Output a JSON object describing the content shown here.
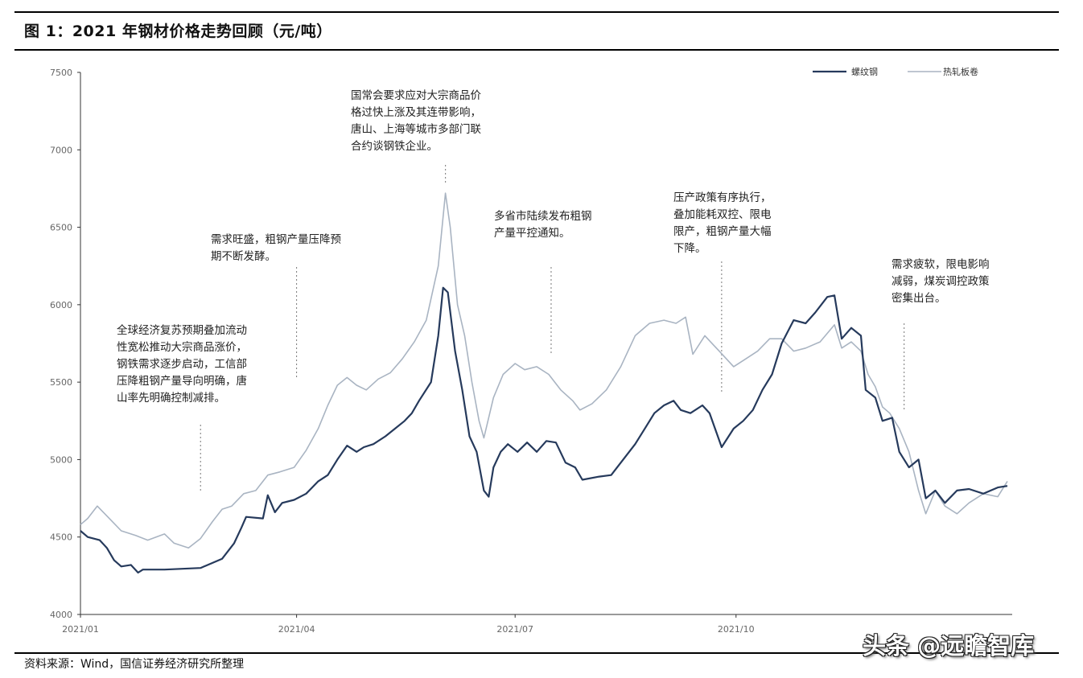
{
  "figure_title": "图 1：2021 年钢材价格走势回顾（元/吨）",
  "source_text": "资料来源：Wind，国信证券经济研究所整理",
  "watermark": "头条 @远瞻智库",
  "chart_data": {
    "type": "line",
    "title": "2021 年钢材价格走势回顾（元/吨）",
    "ylim": [
      4000,
      7500
    ],
    "y_ticks": [
      "4000",
      "4500",
      "5000",
      "5500",
      "6000",
      "6500",
      "7000",
      "7500"
    ],
    "x_ticks": [
      {
        "label": "2021/01",
        "date": "2021-01-01"
      },
      {
        "label": "2021/04",
        "date": "2021-04-01"
      },
      {
        "label": "2021/07",
        "date": "2021-07-01"
      },
      {
        "label": "2021/10",
        "date": "2021-10-01"
      }
    ],
    "grid": false,
    "legend_position": "top-right",
    "series": [
      {
        "name": "螺纹钢",
        "color": "#263a5c",
        "points": [
          [
            "2021-01-01",
            4540
          ],
          [
            "2021-01-04",
            4500
          ],
          [
            "2021-01-09",
            4480
          ],
          [
            "2021-01-12",
            4430
          ],
          [
            "2021-01-15",
            4350
          ],
          [
            "2021-01-18",
            4310
          ],
          [
            "2021-01-22",
            4320
          ],
          [
            "2021-01-25",
            4270
          ],
          [
            "2021-01-27",
            4290
          ],
          [
            "2021-02-05",
            4290
          ],
          [
            "2021-02-20",
            4300
          ],
          [
            "2021-03-01",
            4360
          ],
          [
            "2021-03-06",
            4460
          ],
          [
            "2021-03-09",
            4560
          ],
          [
            "2021-03-11",
            4630
          ],
          [
            "2021-03-18",
            4620
          ],
          [
            "2021-03-20",
            4770
          ],
          [
            "2021-03-23",
            4660
          ],
          [
            "2021-03-26",
            4720
          ],
          [
            "2021-03-31",
            4740
          ],
          [
            "2021-04-05",
            4780
          ],
          [
            "2021-04-10",
            4860
          ],
          [
            "2021-04-14",
            4900
          ],
          [
            "2021-04-18",
            5000
          ],
          [
            "2021-04-22",
            5090
          ],
          [
            "2021-04-26",
            5050
          ],
          [
            "2021-04-29",
            5080
          ],
          [
            "2021-05-03",
            5100
          ],
          [
            "2021-05-08",
            5150
          ],
          [
            "2021-05-12",
            5200
          ],
          [
            "2021-05-16",
            5250
          ],
          [
            "2021-05-19",
            5300
          ],
          [
            "2021-05-22",
            5380
          ],
          [
            "2021-05-27",
            5500
          ],
          [
            "2021-05-30",
            5800
          ],
          [
            "2021-06-01",
            6110
          ],
          [
            "2021-06-03",
            6080
          ],
          [
            "2021-06-06",
            5700
          ],
          [
            "2021-06-09",
            5450
          ],
          [
            "2021-06-12",
            5150
          ],
          [
            "2021-06-15",
            5050
          ],
          [
            "2021-06-18",
            4800
          ],
          [
            "2021-06-20",
            4760
          ],
          [
            "2021-06-22",
            4950
          ],
          [
            "2021-06-25",
            5050
          ],
          [
            "2021-06-28",
            5100
          ],
          [
            "2021-07-02",
            5050
          ],
          [
            "2021-07-06",
            5110
          ],
          [
            "2021-07-10",
            5050
          ],
          [
            "2021-07-14",
            5120
          ],
          [
            "2021-07-18",
            5110
          ],
          [
            "2021-07-22",
            4980
          ],
          [
            "2021-07-26",
            4950
          ],
          [
            "2021-07-29",
            4870
          ],
          [
            "2021-08-05",
            4890
          ],
          [
            "2021-08-10",
            4900
          ],
          [
            "2021-08-15",
            5000
          ],
          [
            "2021-08-20",
            5100
          ],
          [
            "2021-08-24",
            5200
          ],
          [
            "2021-08-28",
            5300
          ],
          [
            "2021-09-01",
            5350
          ],
          [
            "2021-09-05",
            5380
          ],
          [
            "2021-09-08",
            5320
          ],
          [
            "2021-09-12",
            5300
          ],
          [
            "2021-09-17",
            5350
          ],
          [
            "2021-09-20",
            5300
          ],
          [
            "2021-09-25",
            5080
          ],
          [
            "2021-09-30",
            5200
          ],
          [
            "2021-10-04",
            5250
          ],
          [
            "2021-10-08",
            5320
          ],
          [
            "2021-10-12",
            5450
          ],
          [
            "2021-10-16",
            5550
          ],
          [
            "2021-10-20",
            5750
          ],
          [
            "2021-10-25",
            5900
          ],
          [
            "2021-10-30",
            5880
          ],
          [
            "2021-11-03",
            5950
          ],
          [
            "2021-11-08",
            6050
          ],
          [
            "2021-11-11",
            6060
          ],
          [
            "2021-11-14",
            5780
          ],
          [
            "2021-11-18",
            5850
          ],
          [
            "2021-11-22",
            5800
          ],
          [
            "2021-11-24",
            5450
          ],
          [
            "2021-11-28",
            5400
          ],
          [
            "2021-12-01",
            5250
          ],
          [
            "2021-12-05",
            5270
          ],
          [
            "2021-12-08",
            5050
          ],
          [
            "2021-12-12",
            4950
          ],
          [
            "2021-12-16",
            5000
          ],
          [
            "2021-12-19",
            4750
          ],
          [
            "2021-12-23",
            4800
          ],
          [
            "2021-12-27",
            4720
          ],
          [
            "2022-01-01",
            4800
          ],
          [
            "2022-01-06",
            4810
          ],
          [
            "2022-01-12",
            4780
          ],
          [
            "2022-01-18",
            4820
          ],
          [
            "2022-01-22",
            4830
          ]
        ]
      },
      {
        "name": "热轧板卷",
        "color": "#a9b4c2",
        "points": [
          [
            "2021-01-01",
            4580
          ],
          [
            "2021-01-04",
            4620
          ],
          [
            "2021-01-08",
            4700
          ],
          [
            "2021-01-13",
            4620
          ],
          [
            "2021-01-18",
            4540
          ],
          [
            "2021-01-24",
            4510
          ],
          [
            "2021-01-29",
            4480
          ],
          [
            "2021-02-05",
            4520
          ],
          [
            "2021-02-09",
            4460
          ],
          [
            "2021-02-15",
            4430
          ],
          [
            "2021-02-20",
            4490
          ],
          [
            "2021-02-25",
            4600
          ],
          [
            "2021-03-01",
            4680
          ],
          [
            "2021-03-05",
            4700
          ],
          [
            "2021-03-10",
            4780
          ],
          [
            "2021-03-15",
            4800
          ],
          [
            "2021-03-20",
            4900
          ],
          [
            "2021-03-25",
            4920
          ],
          [
            "2021-03-31",
            4950
          ],
          [
            "2021-04-05",
            5060
          ],
          [
            "2021-04-10",
            5200
          ],
          [
            "2021-04-14",
            5350
          ],
          [
            "2021-04-18",
            5480
          ],
          [
            "2021-04-22",
            5530
          ],
          [
            "2021-04-26",
            5480
          ],
          [
            "2021-04-30",
            5450
          ],
          [
            "2021-05-05",
            5520
          ],
          [
            "2021-05-10",
            5560
          ],
          [
            "2021-05-15",
            5650
          ],
          [
            "2021-05-20",
            5760
          ],
          [
            "2021-05-25",
            5900
          ],
          [
            "2021-05-30",
            6250
          ],
          [
            "2021-06-02",
            6720
          ],
          [
            "2021-06-04",
            6500
          ],
          [
            "2021-06-07",
            6000
          ],
          [
            "2021-06-10",
            5800
          ],
          [
            "2021-06-13",
            5500
          ],
          [
            "2021-06-16",
            5250
          ],
          [
            "2021-06-18",
            5140
          ],
          [
            "2021-06-22",
            5400
          ],
          [
            "2021-06-26",
            5550
          ],
          [
            "2021-07-01",
            5620
          ],
          [
            "2021-07-05",
            5580
          ],
          [
            "2021-07-10",
            5600
          ],
          [
            "2021-07-15",
            5550
          ],
          [
            "2021-07-20",
            5450
          ],
          [
            "2021-07-25",
            5380
          ],
          [
            "2021-07-28",
            5320
          ],
          [
            "2021-08-02",
            5360
          ],
          [
            "2021-08-08",
            5450
          ],
          [
            "2021-08-14",
            5600
          ],
          [
            "2021-08-20",
            5800
          ],
          [
            "2021-08-26",
            5880
          ],
          [
            "2021-09-01",
            5900
          ],
          [
            "2021-09-06",
            5880
          ],
          [
            "2021-09-10",
            5920
          ],
          [
            "2021-09-13",
            5680
          ],
          [
            "2021-09-18",
            5800
          ],
          [
            "2021-09-24",
            5700
          ],
          [
            "2021-09-30",
            5600
          ],
          [
            "2021-10-05",
            5650
          ],
          [
            "2021-10-10",
            5700
          ],
          [
            "2021-10-15",
            5780
          ],
          [
            "2021-10-20",
            5780
          ],
          [
            "2021-10-25",
            5700
          ],
          [
            "2021-10-30",
            5720
          ],
          [
            "2021-11-05",
            5760
          ],
          [
            "2021-11-11",
            5870
          ],
          [
            "2021-11-14",
            5720
          ],
          [
            "2021-11-18",
            5760
          ],
          [
            "2021-11-22",
            5700
          ],
          [
            "2021-11-25",
            5550
          ],
          [
            "2021-11-28",
            5470
          ],
          [
            "2021-12-01",
            5340
          ],
          [
            "2021-12-04",
            5300
          ],
          [
            "2021-12-08",
            5200
          ],
          [
            "2021-12-12",
            5050
          ],
          [
            "2021-12-16",
            4800
          ],
          [
            "2021-12-19",
            4650
          ],
          [
            "2021-12-23",
            4800
          ],
          [
            "2021-12-27",
            4700
          ],
          [
            "2022-01-01",
            4650
          ],
          [
            "2022-01-06",
            4720
          ],
          [
            "2022-01-12",
            4780
          ],
          [
            "2022-01-18",
            4760
          ],
          [
            "2022-01-22",
            4860
          ]
        ]
      }
    ],
    "annotations": [
      {
        "lines": [
          "全球经济复苏预期叠加流动",
          "性宽松推动大宗商品涨价，",
          "钢铁需求逐步启动，工信部",
          "压降粗钢产量导向明确，唐",
          "山率先明确控制减排。"
        ],
        "date": "2021-02-20",
        "value": 4780
      },
      {
        "lines": [
          "需求旺盛，粗钢产量压降预",
          "期不断发酵。"
        ],
        "date": "2021-04-01",
        "value": 5550
      },
      {
        "lines": [
          "国常会要求应对大宗商品价",
          "格过快上涨及其连带影响，",
          "唐山、上海等城市多部门联",
          "合约谈钢铁企业。"
        ],
        "date": "2021-06-02",
        "value": 6780
      },
      {
        "lines": [
          "多省市陆续发布粗钢",
          "产量平控通知。"
        ],
        "date": "2021-07-16",
        "value": 5660
      },
      {
        "lines": [
          "压产政策有序执行，",
          "叠加能耗双控、限电",
          "限产，粗钢产量大幅",
          "下降。"
        ],
        "date": "2021-09-25",
        "value": 5450
      },
      {
        "lines": [
          "需求疲软，限电影响",
          "减弱，煤炭调控政策",
          "密集出台。"
        ],
        "date": "2021-12-10",
        "value": 5290
      }
    ]
  }
}
